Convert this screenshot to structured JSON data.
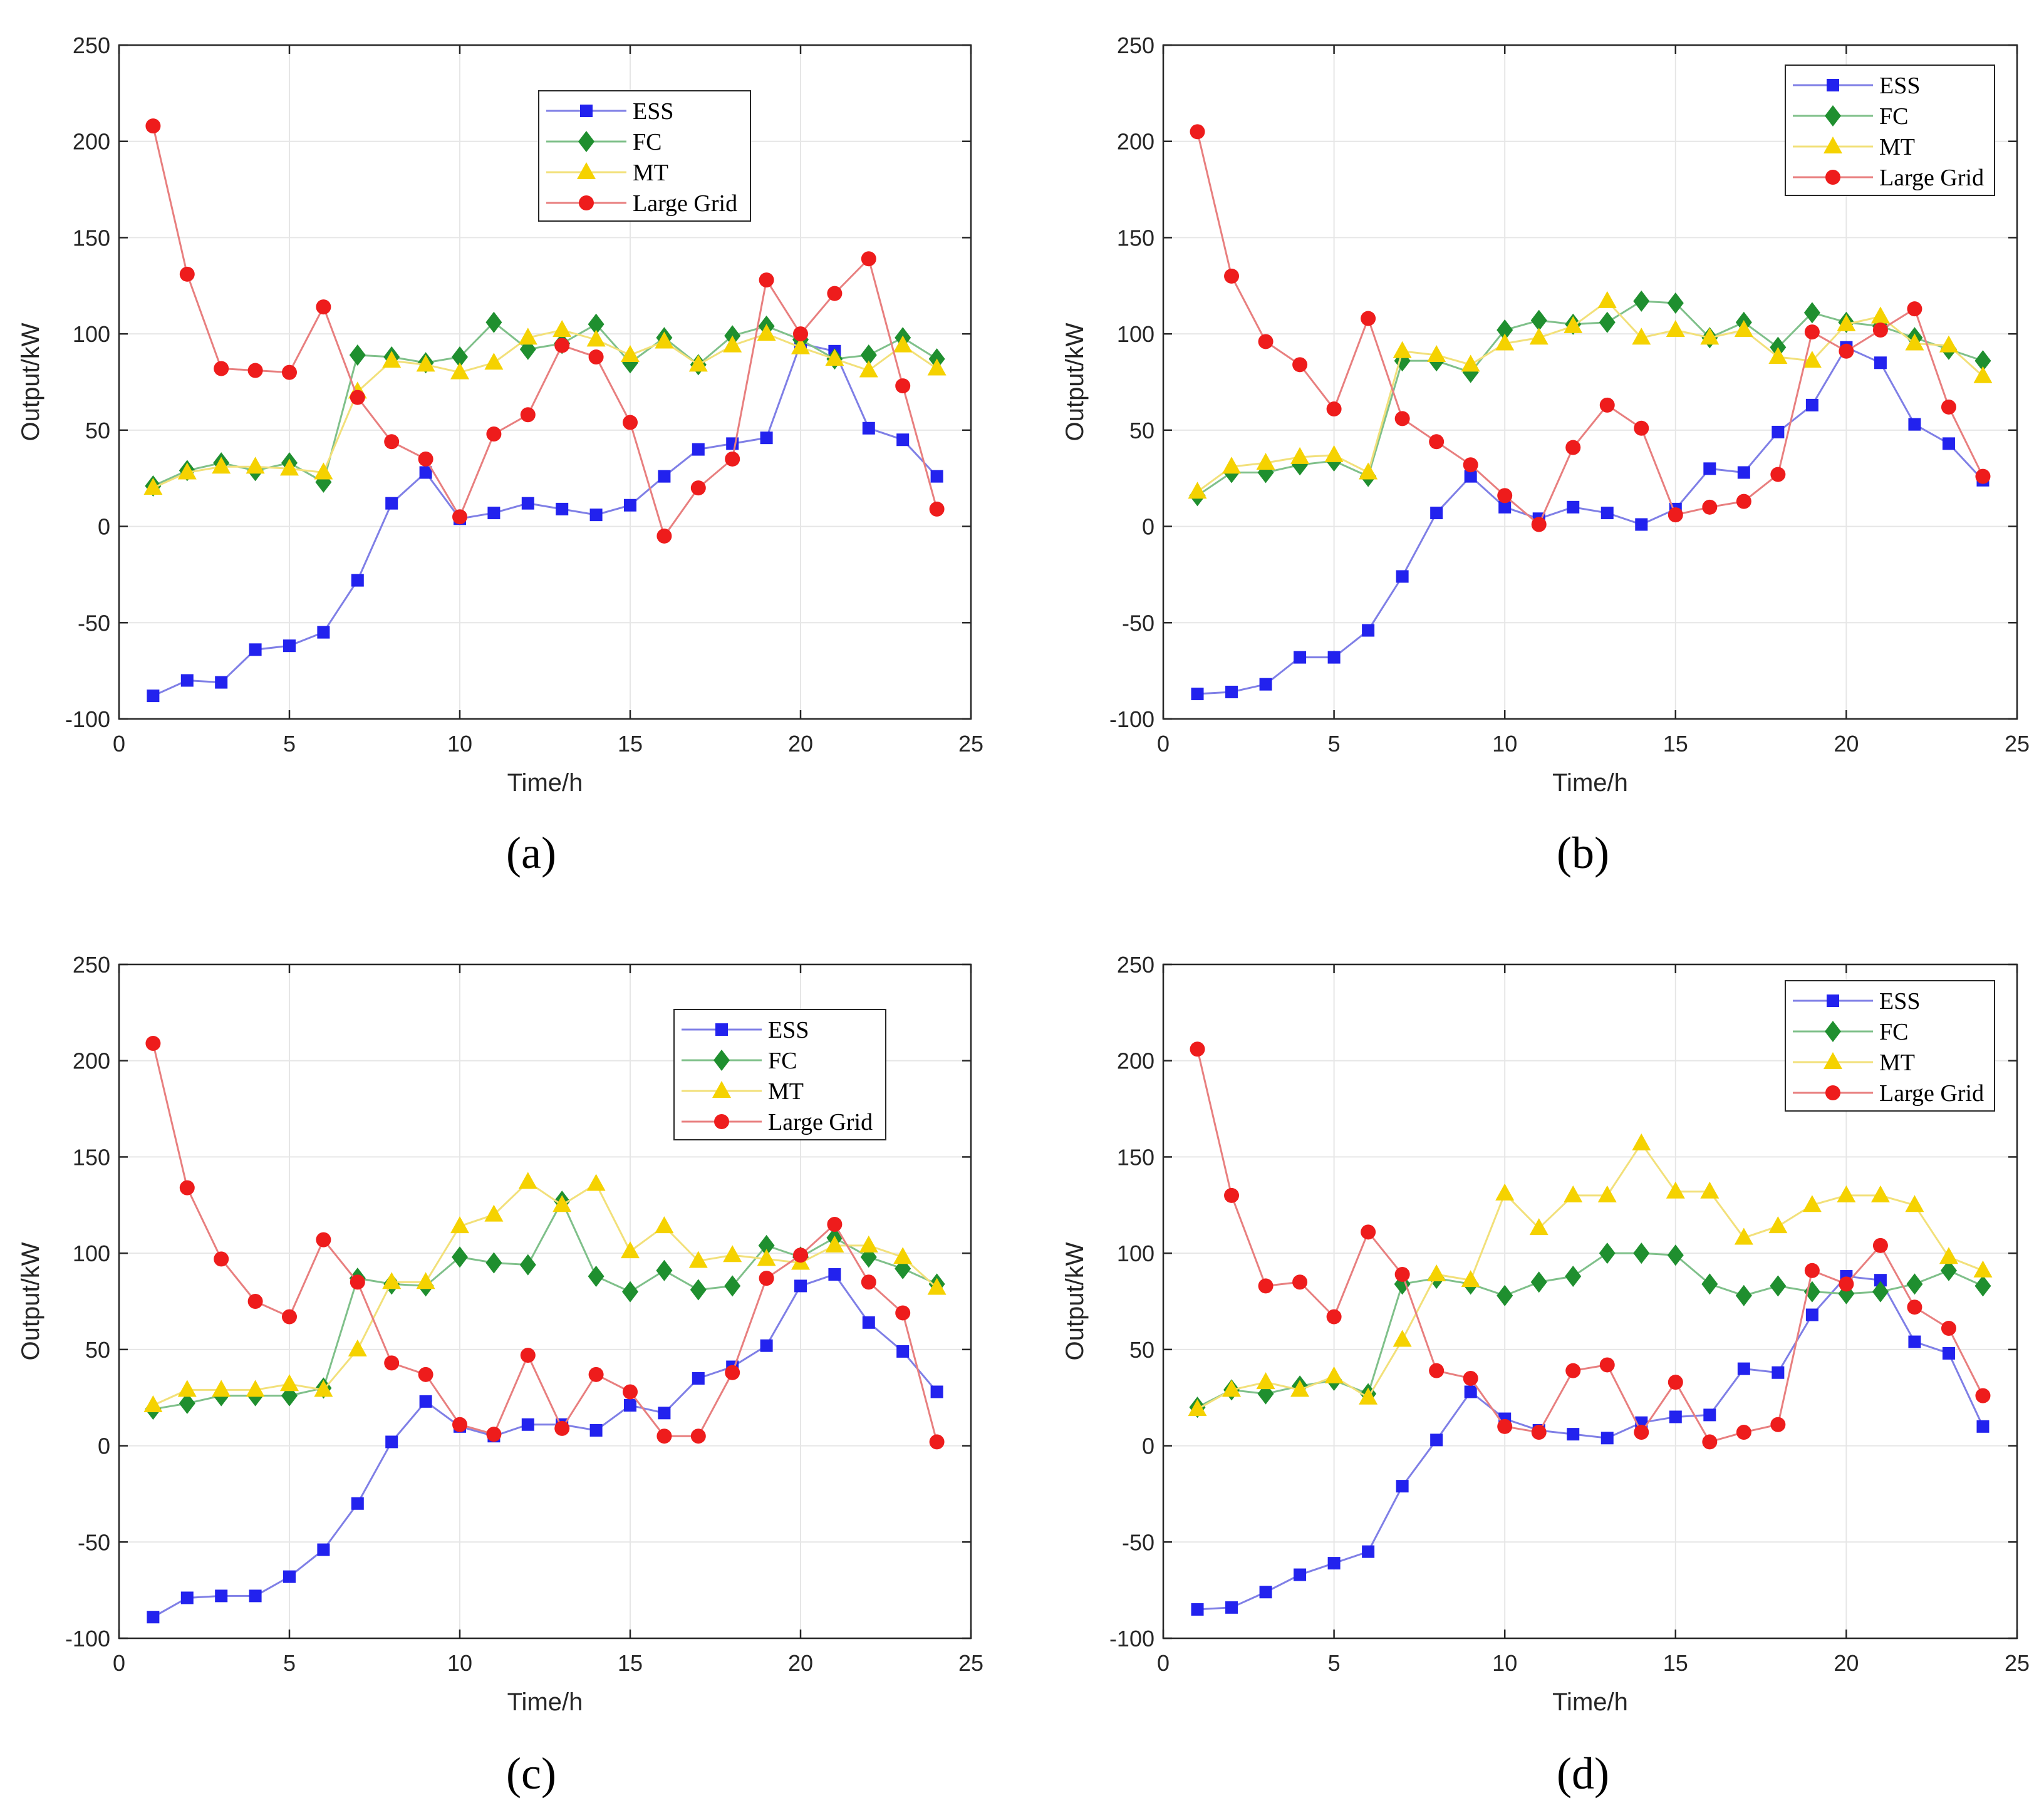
{
  "colors": {
    "ESS": "#2222ee",
    "FC": "#1f8f2f",
    "MT": "#f5d200",
    "Large Grid": "#ee1c1c",
    "ESS_line": "#7f7fe6",
    "FC_line": "#7fc08a",
    "MT_line": "#f2e07a",
    "Large Grid_line": "#e87f7f"
  },
  "chart_data": [
    {
      "type": "line",
      "caption": "(a)",
      "xlabel": "Time/h",
      "ylabel": "Output/kW",
      "xlim": [
        0,
        25
      ],
      "ylim": [
        -100,
        250
      ],
      "xticks": [
        "0",
        "5",
        "10",
        "15",
        "20",
        "25"
      ],
      "yticks": [
        "-100",
        "-50",
        "0",
        "50",
        "100",
        "150",
        "200",
        "250"
      ],
      "grid": true,
      "legend": "top-center",
      "x": [
        1,
        2,
        3,
        4,
        5,
        6,
        7,
        8,
        9,
        10,
        11,
        12,
        13,
        14,
        15,
        16,
        17,
        18,
        19,
        20,
        21,
        22,
        23,
        24
      ],
      "series": [
        {
          "name": "ESS",
          "marker": "square",
          "values": [
            -88,
            -80,
            -81,
            -64,
            -62,
            -55,
            -28,
            12,
            28,
            4,
            7,
            12,
            9,
            6,
            11,
            26,
            40,
            43,
            46,
            95,
            91,
            51,
            45,
            26
          ]
        },
        {
          "name": "FC",
          "marker": "diamond",
          "values": [
            21,
            29,
            33,
            29,
            33,
            23,
            89,
            88,
            85,
            88,
            106,
            92,
            95,
            105,
            85,
            98,
            84,
            99,
            104,
            97,
            87,
            89,
            98,
            87
          ]
        },
        {
          "name": "MT",
          "marker": "triangle",
          "values": [
            20,
            28,
            31,
            31,
            30,
            28,
            70,
            86,
            84,
            80,
            85,
            98,
            102,
            97,
            89,
            96,
            84,
            94,
            100,
            93,
            87,
            81,
            94,
            82
          ]
        },
        {
          "name": "Large Grid",
          "marker": "circle",
          "values": [
            208,
            131,
            82,
            81,
            80,
            114,
            67,
            44,
            35,
            5,
            48,
            58,
            94,
            88,
            54,
            -5,
            20,
            35,
            128,
            100,
            121,
            139,
            73,
            9
          ]
        }
      ]
    },
    {
      "type": "line",
      "caption": "(b)",
      "xlabel": "Time/h",
      "ylabel": "Output/kW",
      "xlim": [
        0,
        25
      ],
      "ylim": [
        -100,
        250
      ],
      "xticks": [
        "0",
        "5",
        "10",
        "15",
        "20",
        "25"
      ],
      "yticks": [
        "-100",
        "-50",
        "0",
        "50",
        "100",
        "150",
        "200",
        "250"
      ],
      "grid": true,
      "legend": "top-right",
      "x": [
        1,
        2,
        3,
        4,
        5,
        6,
        7,
        8,
        9,
        10,
        11,
        12,
        13,
        14,
        15,
        16,
        17,
        18,
        19,
        20,
        21,
        22,
        23,
        24
      ],
      "series": [
        {
          "name": "ESS",
          "marker": "square",
          "values": [
            -87,
            -86,
            -82,
            -68,
            -68,
            -54,
            -26,
            7,
            26,
            10,
            4,
            10,
            7,
            1,
            9,
            30,
            28,
            49,
            63,
            93,
            85,
            53,
            43,
            24
          ]
        },
        {
          "name": "FC",
          "marker": "diamond",
          "values": [
            16,
            28,
            28,
            32,
            34,
            26,
            86,
            86,
            80,
            102,
            107,
            105,
            106,
            117,
            116,
            98,
            106,
            93,
            111,
            106,
            104,
            98,
            92,
            86
          ]
        },
        {
          "name": "MT",
          "marker": "triangle",
          "values": [
            18,
            31,
            33,
            36,
            37,
            28,
            91,
            89,
            84,
            95,
            98,
            104,
            117,
            98,
            102,
            98,
            102,
            88,
            86,
            105,
            109,
            95,
            94,
            78
          ]
        },
        {
          "name": "Large Grid",
          "marker": "circle",
          "values": [
            205,
            130,
            96,
            84,
            61,
            108,
            56,
            44,
            32,
            16,
            1,
            41,
            63,
            51,
            6,
            10,
            13,
            27,
            101,
            91,
            102,
            113,
            62,
            26
          ]
        }
      ]
    },
    {
      "type": "line",
      "caption": "(c)",
      "xlabel": "Time/h",
      "ylabel": "Output/kW",
      "xlim": [
        0,
        25
      ],
      "ylim": [
        -100,
        250
      ],
      "xticks": [
        "0",
        "5",
        "10",
        "15",
        "20",
        "25"
      ],
      "yticks": [
        "-100",
        "-50",
        "0",
        "50",
        "100",
        "150",
        "200",
        "250"
      ],
      "grid": true,
      "legend": "top-right",
      "x": [
        1,
        2,
        3,
        4,
        5,
        6,
        7,
        8,
        9,
        10,
        11,
        12,
        13,
        14,
        15,
        16,
        17,
        18,
        19,
        20,
        21,
        22,
        23,
        24
      ],
      "series": [
        {
          "name": "ESS",
          "marker": "square",
          "values": [
            -89,
            -79,
            -78,
            -78,
            -68,
            -54,
            -30,
            2,
            23,
            10,
            5,
            11,
            11,
            8,
            21,
            17,
            35,
            41,
            52,
            83,
            89,
            64,
            49,
            28
          ]
        },
        {
          "name": "FC",
          "marker": "diamond",
          "values": [
            19,
            22,
            26,
            26,
            26,
            30,
            87,
            84,
            83,
            98,
            95,
            94,
            127,
            88,
            80,
            91,
            81,
            83,
            104,
            98,
            108,
            98,
            92,
            84
          ]
        },
        {
          "name": "MT",
          "marker": "triangle",
          "values": [
            21,
            29,
            29,
            29,
            32,
            29,
            50,
            85,
            85,
            114,
            120,
            137,
            125,
            136,
            101,
            114,
            96,
            99,
            97,
            95,
            104,
            104,
            98,
            82
          ]
        },
        {
          "name": "Large Grid",
          "marker": "circle",
          "values": [
            209,
            134,
            97,
            75,
            67,
            107,
            85,
            43,
            37,
            11,
            6,
            47,
            9,
            37,
            28,
            5,
            5,
            38,
            87,
            99,
            115,
            85,
            69,
            2
          ]
        }
      ]
    },
    {
      "type": "line",
      "caption": "(d)",
      "xlabel": "Time/h",
      "ylabel": "Output/kW",
      "xlim": [
        0,
        25
      ],
      "ylim": [
        -100,
        250
      ],
      "xticks": [
        "0",
        "5",
        "10",
        "15",
        "20",
        "25"
      ],
      "yticks": [
        "-100",
        "-50",
        "0",
        "50",
        "100",
        "150",
        "200",
        "250"
      ],
      "grid": true,
      "legend": "top-right",
      "x": [
        1,
        2,
        3,
        4,
        5,
        6,
        7,
        8,
        9,
        10,
        11,
        12,
        13,
        14,
        15,
        16,
        17,
        18,
        19,
        20,
        21,
        22,
        23,
        24
      ],
      "series": [
        {
          "name": "ESS",
          "marker": "square",
          "values": [
            -85,
            -84,
            -76,
            -67,
            -61,
            -55,
            -21,
            3,
            28,
            14,
            8,
            6,
            4,
            12,
            15,
            16,
            40,
            38,
            68,
            88,
            86,
            54,
            48,
            10
          ]
        },
        {
          "name": "FC",
          "marker": "diamond",
          "values": [
            20,
            29,
            27,
            31,
            34,
            27,
            84,
            87,
            84,
            78,
            85,
            88,
            100,
            100,
            99,
            84,
            78,
            83,
            80,
            79,
            80,
            84,
            91,
            83
          ]
        },
        {
          "name": "MT",
          "marker": "triangle",
          "values": [
            19,
            29,
            33,
            29,
            36,
            25,
            55,
            89,
            86,
            131,
            113,
            130,
            130,
            157,
            132,
            132,
            108,
            114,
            125,
            130,
            130,
            125,
            98,
            91
          ]
        },
        {
          "name": "Large Grid",
          "marker": "circle",
          "values": [
            206,
            130,
            83,
            85,
            67,
            111,
            89,
            39,
            35,
            10,
            7,
            39,
            42,
            7,
            33,
            2,
            7,
            11,
            91,
            84,
            104,
            72,
            61,
            26
          ]
        }
      ]
    }
  ]
}
